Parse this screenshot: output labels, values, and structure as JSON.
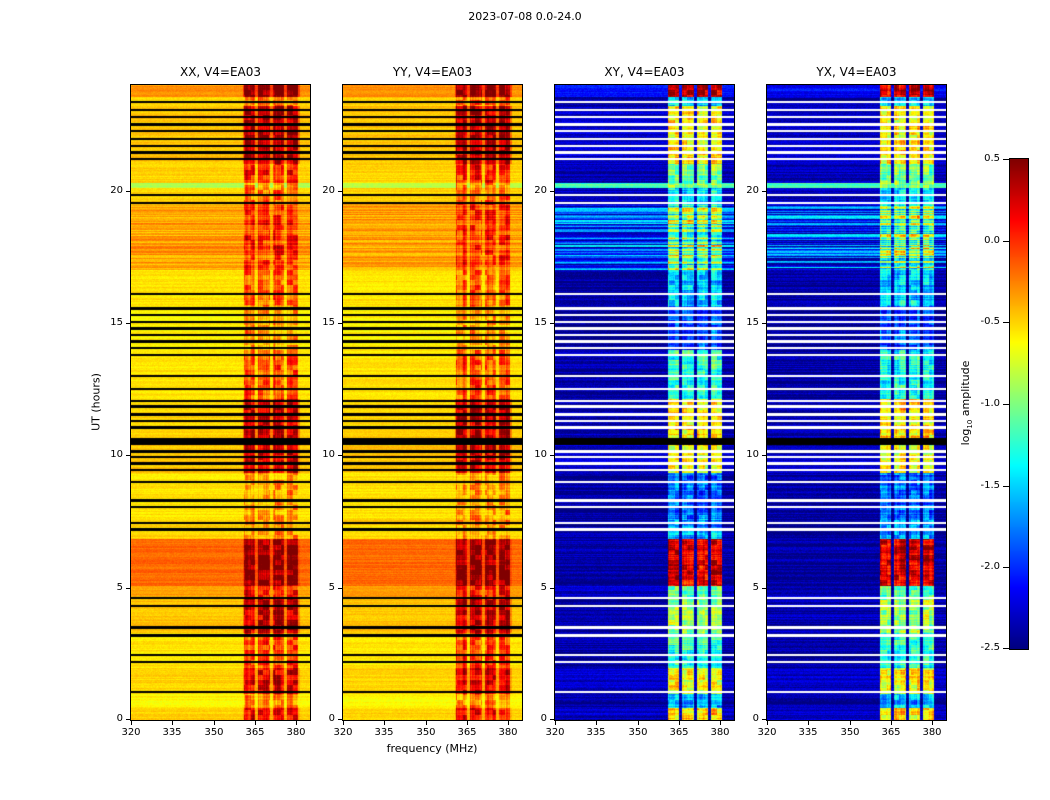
{
  "chart_data": {
    "type": "heatmap",
    "colormap": "jet",
    "suptitle": "2023-07-08 0.0-24.0",
    "xlabel": "frequency (MHz)",
    "ylabel": "UT (hours)",
    "panels": [
      {
        "title": "XX, V4=EA03",
        "kind": "auto"
      },
      {
        "title": "YY, V4=EA03",
        "kind": "auto"
      },
      {
        "title": "XY, V4=EA03",
        "kind": "cross"
      },
      {
        "title": "YX, V4=EA03",
        "kind": "cross"
      }
    ],
    "x_axis": {
      "range": [
        320,
        385
      ],
      "ticks": [
        320,
        335,
        350,
        365,
        380
      ],
      "tick_labels": [
        "320",
        "335",
        "350",
        "365",
        "380"
      ]
    },
    "y_axis": {
      "range": [
        0,
        24
      ],
      "ticks": [
        0,
        5,
        10,
        15,
        20
      ],
      "tick_labels": [
        "0",
        "5",
        "10",
        "15",
        "20"
      ]
    },
    "colorbar": {
      "label_prefix": "log",
      "label_sub": "10",
      "label_suffix": " amplitude",
      "range": [
        -2.5,
        0.5
      ],
      "ticks": [
        0.5,
        0.0,
        -0.5,
        -1.0,
        -1.5,
        -2.0,
        -2.5
      ],
      "tick_labels": [
        "0.5",
        "0.0",
        "-0.5",
        "-1.0",
        "-1.5",
        "-2.0",
        "-2.5"
      ]
    },
    "rfi_band": {
      "range": [
        360.5,
        381.5
      ],
      "subbands": [
        [
          361.0,
          365.2
        ],
        [
          366.2,
          370.4
        ],
        [
          371.4,
          375.6
        ],
        [
          376.6,
          380.8
        ]
      ]
    },
    "black_band_ut": [
      10.4,
      10.67
    ],
    "flagged_times_ut": [
      1.05,
      2.2,
      2.45,
      3.2,
      3.5,
      4.3,
      4.6,
      7.2,
      7.45,
      8.05,
      8.3,
      9.0,
      9.45,
      9.7,
      9.95,
      10.15,
      11.05,
      11.3,
      11.55,
      11.85,
      12.05,
      12.5,
      13.0,
      13.8,
      14.05,
      14.3,
      14.55,
      14.8,
      15.05,
      15.3,
      15.55,
      16.1,
      19.55,
      19.85,
      21.2,
      21.45,
      21.7,
      21.95,
      22.25,
      22.5,
      22.8,
      23.05,
      23.35
    ],
    "time_segments": [
      {
        "t": [
          0.0,
          0.45
        ],
        "a": -0.5,
        "c": -2.3,
        "ra": 0.15,
        "rc": -0.55
      },
      {
        "t": [
          0.45,
          1.0
        ],
        "a": -0.6,
        "c": -2.4,
        "ra": -0.25,
        "rc": -1.6
      },
      {
        "t": [
          1.0,
          1.95
        ],
        "a": -0.5,
        "c": -2.3,
        "ra": 0.2,
        "rc": -0.65
      },
      {
        "t": [
          1.95,
          3.3
        ],
        "a": -0.55,
        "c": -2.4,
        "ra": -0.05,
        "rc": -1.25
      },
      {
        "t": [
          3.3,
          4.6
        ],
        "a": -0.45,
        "c": -2.35,
        "ra": 0.3,
        "rc": -0.9
      },
      {
        "t": [
          4.6,
          5.05
        ],
        "a": -0.35,
        "c": -2.3,
        "ra": 0.05,
        "rc": -1.1
      },
      {
        "t": [
          5.05,
          6.85
        ],
        "a": -0.18,
        "c": -2.4,
        "ra": 0.45,
        "rc": 0.25
      },
      {
        "t": [
          6.85,
          7.6
        ],
        "a": -0.5,
        "c": -2.4,
        "ra": -0.3,
        "rc": -1.6
      },
      {
        "t": [
          7.6,
          9.35
        ],
        "a": -0.55,
        "c": -2.4,
        "ra": -0.35,
        "rc": -1.8
      },
      {
        "t": [
          9.35,
          10.4
        ],
        "a": -0.45,
        "c": -2.3,
        "ra": 0.25,
        "rc": -0.7
      },
      {
        "t": [
          10.4,
          10.67
        ],
        "a": -0.5,
        "c": -2.35,
        "ra": 0.0,
        "rc": -1.0
      },
      {
        "t": [
          10.67,
          12.15
        ],
        "a": -0.5,
        "c": -2.35,
        "ra": 0.3,
        "rc": -0.55
      },
      {
        "t": [
          12.15,
          14.0
        ],
        "a": -0.55,
        "c": -2.4,
        "ra": -0.1,
        "rc": -1.3
      },
      {
        "t": [
          14.0,
          15.65
        ],
        "a": -0.6,
        "c": -2.45,
        "ra": -0.35,
        "rc": -1.9
      },
      {
        "t": [
          15.65,
          17.0
        ],
        "a": -0.55,
        "c": -2.4,
        "ra": -0.15,
        "rc": -1.5
      },
      {
        "t": [
          17.0,
          19.5
        ],
        "a": -0.35,
        "c": -1.95,
        "ra": 0.0,
        "rc": -1.0,
        "rn": 4
      },
      {
        "t": [
          19.5,
          20.1
        ],
        "a": -0.5,
        "c": -2.3,
        "ra": -0.2,
        "rc": -1.4
      },
      {
        "t": [
          20.1,
          20.3
        ],
        "a": -0.85,
        "c": -1.15,
        "ra": -0.3,
        "rc": -0.9
      },
      {
        "t": [
          20.3,
          21.0
        ],
        "a": -0.5,
        "c": -2.35,
        "ra": 0.05,
        "rc": -1.05
      },
      {
        "t": [
          21.0,
          23.2
        ],
        "a": -0.45,
        "c": -2.3,
        "ra": 0.35,
        "rc": -0.6
      },
      {
        "t": [
          23.2,
          23.55
        ],
        "a": -0.5,
        "c": -2.4,
        "ra": -0.2,
        "rc": -1.5
      },
      {
        "t": [
          23.55,
          24.01
        ],
        "a": -0.3,
        "c": -2.1,
        "ra": 0.5,
        "rc": 0.3
      }
    ]
  }
}
